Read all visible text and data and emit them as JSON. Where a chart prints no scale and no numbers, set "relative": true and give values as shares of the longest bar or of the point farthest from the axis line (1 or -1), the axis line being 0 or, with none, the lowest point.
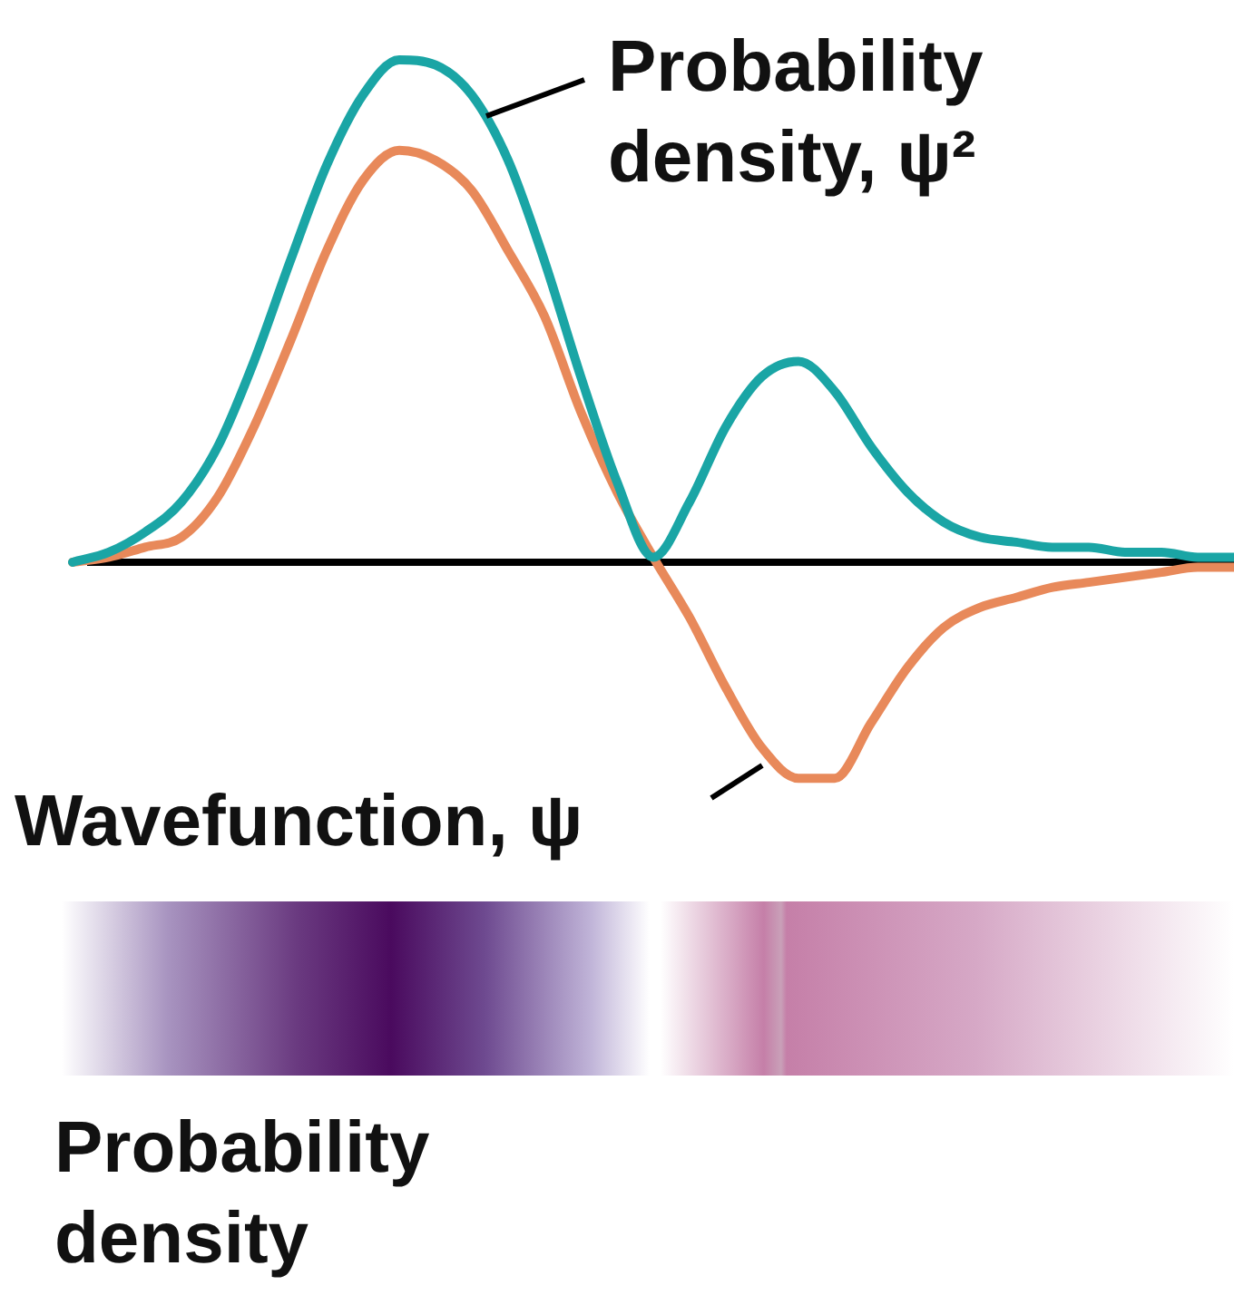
{
  "chart_data": {
    "type": "line",
    "relative": true,
    "legend": false,
    "marker": "none",
    "tick_labels": false,
    "categories": [
      null,
      null,
      null,
      null,
      null,
      null,
      null,
      null,
      null,
      null,
      null,
      null,
      null,
      null,
      null,
      null,
      null,
      null,
      null,
      null,
      null,
      null,
      null,
      null,
      null,
      null,
      null,
      null,
      null,
      null,
      null,
      null,
      null
    ],
    "series": [
      {
        "color": "#1aa5a5",
        "values": [
          0,
          0.02,
          0.06,
          0.12,
          0.23,
          0.4,
          0.6,
          0.79,
          0.93,
          1,
          0.99,
          0.93,
          0.8,
          0.6,
          0.37,
          0.16,
          0.01,
          0.12,
          0.27,
          0.37,
          0.4,
          0.34,
          0.23,
          0.14,
          0.08,
          0.05,
          0.04,
          0.03,
          0.03,
          0.02,
          0.02,
          0.01,
          0.01
        ]
      },
      {
        "color": "#e8895a",
        "values": [
          0,
          0.01,
          0.03,
          0.05,
          0.13,
          0.27,
          0.44,
          0.62,
          0.76,
          0.82,
          0.8,
          0.74,
          0.62,
          0.49,
          0.3,
          0.14,
          0.01,
          -0.11,
          -0.25,
          -0.37,
          -0.43,
          -0.43,
          -0.32,
          -0.21,
          -0.13,
          -0.09,
          -0.07,
          -0.05,
          -0.04,
          -0.03,
          -0.02,
          -0.01,
          -0.01
        ]
      }
    ],
    "annotations": [
      "Probability density, ψ²",
      "Wavefunction, ψ",
      "Probability density"
    ]
  }
}
